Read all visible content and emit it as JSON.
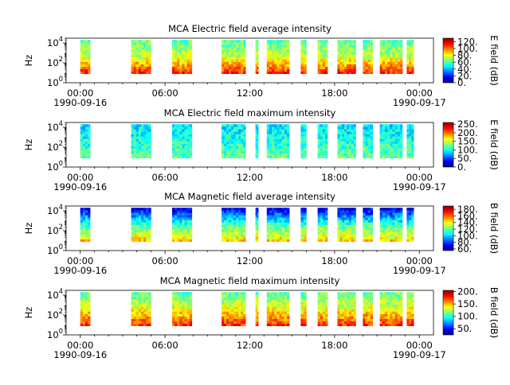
{
  "figure": {
    "panels_count_label": "",
    "colormap": [
      "#00007f",
      "#0000ff",
      "#007fff",
      "#00ffff",
      "#7fff7f",
      "#ffff00",
      "#ff7f00",
      "#ff0000",
      "#7f0000"
    ]
  },
  "chart_data": [
    {
      "type": "heatmap",
      "title": "MCA  Electric field average intensity",
      "ylabel": "Hz",
      "y_scale": "log",
      "y_ticks": [
        {
          "base": "10",
          "exp": "0"
        },
        {
          "base": "10",
          "exp": "2"
        },
        {
          "base": "10",
          "exp": "4"
        }
      ],
      "ylim": [
        1,
        30000
      ],
      "x_ticks": [
        "00:00",
        "06:00",
        "12:00",
        "18:00",
        "00:00"
      ],
      "x_dates": [
        "1990-09-16",
        "1990-09-17"
      ],
      "xlim_hours": [
        -1,
        25
      ],
      "colorbar": {
        "label": "E field (dB)",
        "ticks": [
          "0.",
          "20.",
          "40.",
          "60.",
          "80.",
          "100.",
          "120."
        ],
        "range": [
          0,
          130
        ]
      },
      "data_segments_hours": [
        [
          0.0,
          0.7
        ],
        [
          3.6,
          5.0
        ],
        [
          6.5,
          7.9
        ],
        [
          10.0,
          11.7
        ],
        [
          12.4,
          12.6
        ],
        [
          13.2,
          14.8
        ],
        [
          15.6,
          16.0
        ],
        [
          16.8,
          17.5
        ],
        [
          18.2,
          19.5
        ],
        [
          20.0,
          20.7
        ],
        [
          21.2,
          22.8
        ],
        [
          23.1,
          23.6
        ]
      ],
      "intensity_profile": {
        "low_freq_db": 110,
        "mid_freq_db": 75,
        "high_freq_db": 60
      }
    },
    {
      "type": "heatmap",
      "title": "MCA  Electric field maximum intensity",
      "ylabel": "Hz",
      "y_scale": "log",
      "y_ticks": [
        {
          "base": "10",
          "exp": "0"
        },
        {
          "base": "10",
          "exp": "2"
        },
        {
          "base": "10",
          "exp": "4"
        }
      ],
      "ylim": [
        1,
        30000
      ],
      "x_ticks": [
        "00:00",
        "06:00",
        "12:00",
        "18:00",
        "00:00"
      ],
      "x_dates": [
        "1990-09-16",
        "1990-09-17"
      ],
      "xlim_hours": [
        -1,
        25
      ],
      "colorbar": {
        "label": "E field (dB)",
        "ticks": [
          "0.",
          "50.",
          "100.",
          "150.",
          "200.",
          "250."
        ],
        "range": [
          0,
          260
        ]
      },
      "data_segments_hours": [
        [
          0.0,
          0.7
        ],
        [
          3.6,
          5.0
        ],
        [
          6.5,
          7.9
        ],
        [
          10.0,
          11.7
        ],
        [
          12.4,
          12.6
        ],
        [
          13.2,
          14.8
        ],
        [
          15.6,
          16.0
        ],
        [
          16.8,
          17.5
        ],
        [
          18.2,
          19.5
        ],
        [
          20.0,
          20.7
        ],
        [
          21.2,
          22.8
        ],
        [
          23.1,
          23.6
        ]
      ],
      "intensity_profile": {
        "low_freq_db": 120,
        "mid_freq_db": 105,
        "high_freq_db": 90
      }
    },
    {
      "type": "heatmap",
      "title": "MCA  Magnetic field average intensity",
      "ylabel": "Hz",
      "y_scale": "log",
      "y_ticks": [
        {
          "base": "10",
          "exp": "0"
        },
        {
          "base": "10",
          "exp": "2"
        },
        {
          "base": "10",
          "exp": "4"
        }
      ],
      "ylim": [
        1,
        30000
      ],
      "x_ticks": [
        "00:00",
        "06:00",
        "12:00",
        "18:00",
        "00:00"
      ],
      "x_dates": [
        "1990-09-16",
        "1990-09-17"
      ],
      "xlim_hours": [
        -1,
        25
      ],
      "colorbar": {
        "label": "B field (dB)",
        "ticks": [
          "60.",
          "80.",
          "100.",
          "120.",
          "140.",
          "160.",
          "180."
        ],
        "range": [
          55,
          190
        ]
      },
      "data_segments_hours": [
        [
          0.0,
          0.7
        ],
        [
          3.6,
          5.0
        ],
        [
          6.5,
          7.9
        ],
        [
          10.0,
          11.7
        ],
        [
          12.4,
          12.6
        ],
        [
          13.2,
          14.8
        ],
        [
          15.6,
          16.0
        ],
        [
          16.8,
          17.5
        ],
        [
          18.2,
          19.5
        ],
        [
          20.0,
          20.7
        ],
        [
          21.2,
          22.8
        ],
        [
          23.1,
          23.6
        ]
      ],
      "intensity_profile": {
        "low_freq_db": 145,
        "mid_freq_db": 115,
        "high_freq_db": 70
      }
    },
    {
      "type": "heatmap",
      "title": "MCA  Magnetic field maximum intensity",
      "ylabel": "Hz",
      "y_scale": "log",
      "y_ticks": [
        {
          "base": "10",
          "exp": "0"
        },
        {
          "base": "10",
          "exp": "2"
        },
        {
          "base": "10",
          "exp": "4"
        }
      ],
      "ylim": [
        1,
        30000
      ],
      "x_ticks": [
        "00:00",
        "06:00",
        "12:00",
        "18:00",
        "00:00"
      ],
      "x_dates": [
        "1990-09-16",
        "1990-09-17"
      ],
      "xlim_hours": [
        -1,
        25
      ],
      "colorbar": {
        "label": "B field (dB)",
        "ticks": [
          "50.",
          "100.",
          "150.",
          "200."
        ],
        "range": [
          25,
          205
        ]
      },
      "data_segments_hours": [
        [
          0.0,
          0.7
        ],
        [
          3.6,
          5.0
        ],
        [
          6.5,
          7.9
        ],
        [
          10.0,
          11.7
        ],
        [
          12.4,
          12.6
        ],
        [
          13.2,
          14.8
        ],
        [
          15.6,
          16.0
        ],
        [
          16.8,
          17.5
        ],
        [
          18.2,
          19.5
        ],
        [
          20.0,
          20.7
        ],
        [
          21.2,
          22.8
        ],
        [
          23.1,
          23.6
        ]
      ],
      "intensity_profile": {
        "low_freq_db": 175,
        "mid_freq_db": 135,
        "high_freq_db": 110
      }
    }
  ]
}
